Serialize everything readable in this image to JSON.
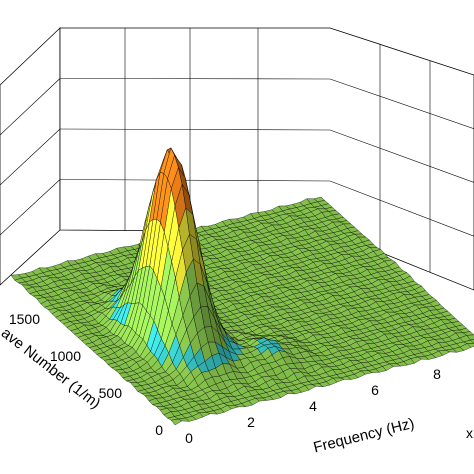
{
  "chart_data": {
    "type": "surface",
    "x_axis": {
      "label": "Frequency (Hz)",
      "range": [
        0,
        10
      ],
      "ticks": [
        0,
        2,
        4,
        6,
        8
      ],
      "tick_labels": [
        "0",
        "2",
        "4",
        "6",
        "8"
      ]
    },
    "y_axis": {
      "label": "ave Number (1/m)",
      "range": [
        0,
        2000
      ],
      "ticks": [
        0,
        500,
        1000,
        1500
      ],
      "tick_labels": [
        "0",
        "500",
        "1000",
        "1500"
      ]
    },
    "z_axis": {
      "label": "",
      "ticks": []
    },
    "exponent_marker": "x",
    "colormap": [
      "#3aa0ff",
      "#3fe0e0",
      "#9fe85a",
      "#f6f03a",
      "#ff8a1a",
      "#e01010"
    ],
    "peak": {
      "frequency": 2.3,
      "wave_number": 900
    },
    "grid": true
  }
}
